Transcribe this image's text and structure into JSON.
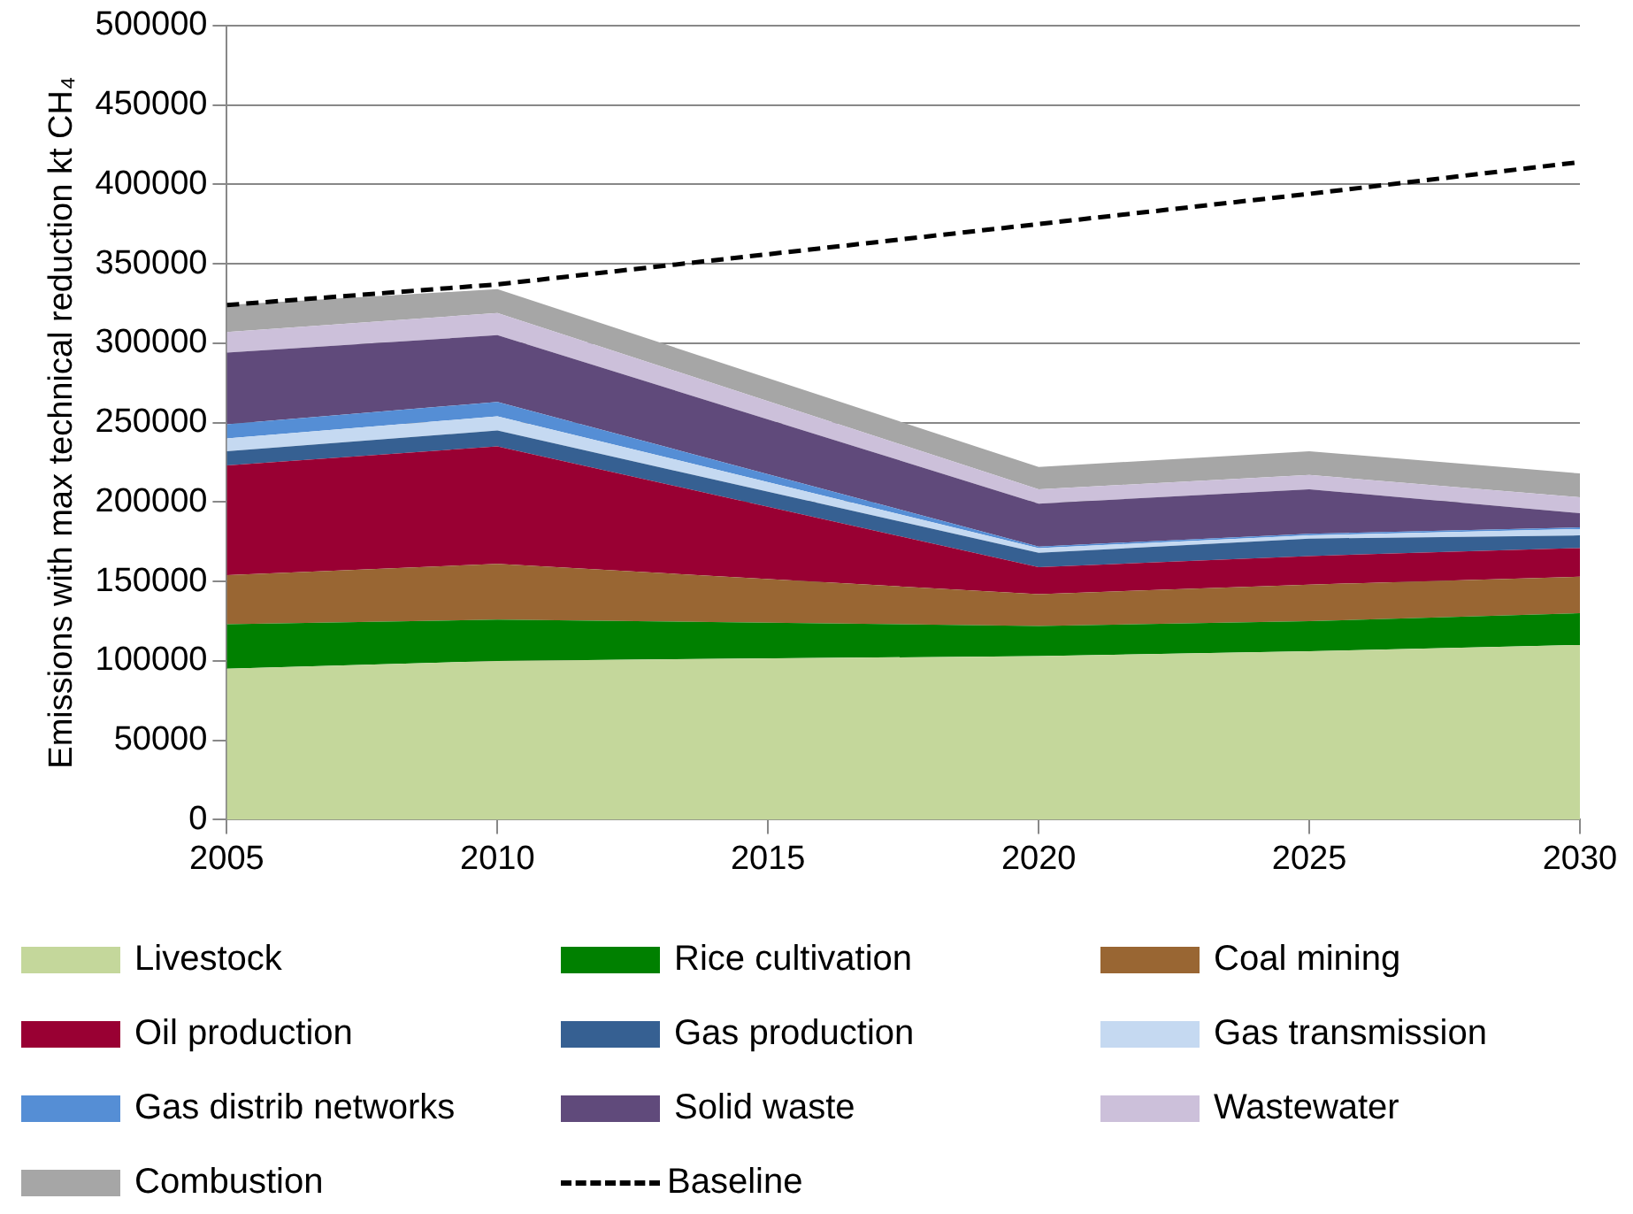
{
  "chart_data": {
    "type": "area",
    "stacked": true,
    "ylabel": "Emissions with max technical reduction kt CH₄",
    "x": [
      2005,
      2010,
      2020,
      2025,
      2030
    ],
    "xlim": [
      2005,
      2030
    ],
    "xticks": [
      2005,
      2010,
      2015,
      2020,
      2025,
      2030
    ],
    "ylim": [
      0,
      500000
    ],
    "yticks": [
      0,
      50000,
      100000,
      150000,
      200000,
      250000,
      300000,
      350000,
      400000,
      450000,
      500000
    ],
    "grid": "y",
    "legend": "bottom",
    "series": [
      {
        "name": "Livestock",
        "color": "#c4d79b",
        "values": [
          95000,
          100000,
          103000,
          106000,
          110000
        ]
      },
      {
        "name": "Rice cultivation",
        "color": "#008000",
        "values": [
          28000,
          26000,
          19000,
          19000,
          20000
        ]
      },
      {
        "name": "Coal mining",
        "color": "#996633",
        "values": [
          31000,
          35000,
          20000,
          23000,
          23000
        ]
      },
      {
        "name": "Oil production",
        "color": "#990033",
        "values": [
          69000,
          74000,
          17000,
          18000,
          18000
        ]
      },
      {
        "name": "Gas production",
        "color": "#366092",
        "values": [
          9000,
          10000,
          9000,
          11000,
          8000
        ]
      },
      {
        "name": "Gas transmission",
        "color": "#c5d9f1",
        "values": [
          8000,
          9000,
          3000,
          2000,
          4000
        ]
      },
      {
        "name": "Gas distrib networks",
        "color": "#558ed5",
        "values": [
          9000,
          9000,
          1000,
          1000,
          1000
        ]
      },
      {
        "name": "Solid waste",
        "color": "#604a7b",
        "values": [
          45000,
          42000,
          27000,
          28000,
          9000
        ]
      },
      {
        "name": "Wastewater",
        "color": "#ccc0da",
        "values": [
          13000,
          14000,
          9000,
          9000,
          10000
        ]
      },
      {
        "name": "Combustion",
        "color": "#a6a6a6",
        "values": [
          17000,
          15000,
          14000,
          15000,
          15000
        ]
      },
      {
        "name": "Baseline",
        "type": "line",
        "line_style": "dashed",
        "marker": "none",
        "color": "#000000",
        "values": [
          324000,
          337000,
          375000,
          394000,
          414000
        ]
      }
    ]
  }
}
